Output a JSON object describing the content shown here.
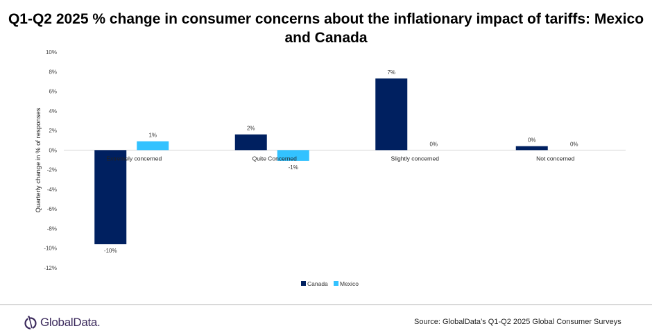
{
  "chart_data": {
    "type": "bar",
    "title": "Q1-Q2 2025 % change in consumer concerns about the inflationary impact of tariffs: Mexico and Canada",
    "xlabel": "",
    "ylabel": "Quarterly change in % of responses",
    "ylim": [
      -12,
      10
    ],
    "yticks": [
      10,
      8,
      6,
      4,
      2,
      0,
      -2,
      -4,
      -6,
      -8,
      -10,
      -12
    ],
    "ytick_labels": [
      "10%",
      "8%",
      "6%",
      "4%",
      "2%",
      "0%",
      "-2%",
      "-4%",
      "-6%",
      "-8%",
      "-10%",
      "-12%"
    ],
    "categories": [
      "Extremely concerned",
      "Quite Concerned",
      "Slightly concerned",
      "Not concerned"
    ],
    "series": [
      {
        "name": "Canada",
        "color": "#002060",
        "values": [
          -9.6,
          1.6,
          7.3,
          0.4
        ],
        "labels": [
          "-10%",
          "2%",
          "7%",
          "0%"
        ]
      },
      {
        "name": "Mexico",
        "color": "#33c2ff",
        "values": [
          0.9,
          -1.1,
          0.0,
          0.0
        ],
        "labels": [
          "1%",
          "-1%",
          "0%",
          "0%"
        ]
      }
    ],
    "legend": "bottom-center",
    "grid": false
  },
  "footer": {
    "logo_text": "GlobalData.",
    "source": "Source: GlobalData’s Q1-Q2 2025 Global Consumer Surveys"
  }
}
